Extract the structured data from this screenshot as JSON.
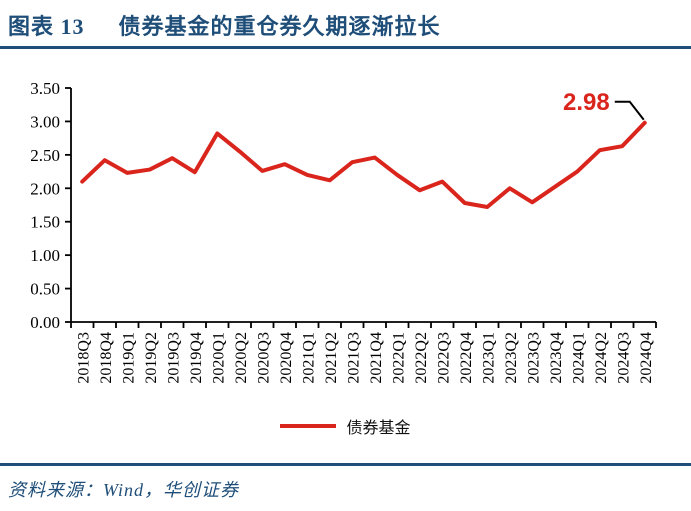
{
  "page": {
    "title_prefix": "图表 13",
    "title": "债券基金的重仓券久期逐渐拉长",
    "source": "资料来源：Wind，华创证券"
  },
  "colors": {
    "navy": "#1F4E79",
    "red": "#DA251D",
    "axis": "#000000"
  },
  "legend": {
    "label": "债券基金"
  },
  "annotation": {
    "label": "2.98"
  },
  "chart_data": {
    "type": "line",
    "title": "图表 13 债券基金的重仓券久期逐渐拉长",
    "categories": [
      "2018Q3",
      "2018Q4",
      "2019Q1",
      "2019Q2",
      "2019Q3",
      "2019Q4",
      "2020Q1",
      "2020Q2",
      "2020Q3",
      "2020Q4",
      "2021Q1",
      "2021Q2",
      "2021Q3",
      "2021Q4",
      "2022Q1",
      "2022Q2",
      "2022Q3",
      "2022Q4",
      "2023Q1",
      "2023Q2",
      "2023Q3",
      "2023Q4",
      "2024Q1",
      "2024Q2",
      "2024Q3",
      "2024Q4"
    ],
    "series": [
      {
        "name": "债券基金",
        "color": "#DA251D",
        "values": [
          2.1,
          2.42,
          2.23,
          2.28,
          2.45,
          2.24,
          2.82,
          2.55,
          2.26,
          2.36,
          2.2,
          2.12,
          2.39,
          2.46,
          2.2,
          1.97,
          2.1,
          1.78,
          1.72,
          2.0,
          1.79,
          2.02,
          2.25,
          2.57,
          2.63,
          2.98
        ],
        "line_width": 4
      }
    ],
    "xlabel": "",
    "ylabel": "",
    "ylim": [
      0,
      3.5
    ],
    "y_tick_labels": [
      "0.00",
      "0.50",
      "1.00",
      "1.50",
      "2.00",
      "2.50",
      "3.00",
      "3.50"
    ],
    "grid": false,
    "legend_position": "bottom",
    "x_tick_rotation": -90,
    "annotation": {
      "text": "2.98",
      "point_index": 25
    }
  }
}
